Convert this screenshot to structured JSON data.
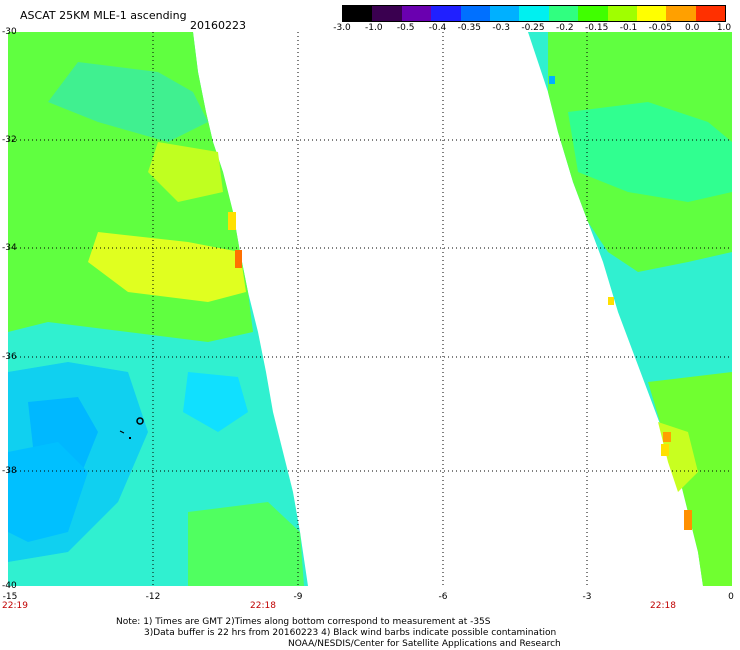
{
  "header": {
    "title": "ASCAT 25KM MLE-1 ascending",
    "date": "20160223"
  },
  "colorbar": {
    "colors": [
      "#000000",
      "#3a0050",
      "#6a00b0",
      "#2020ff",
      "#0070ff",
      "#00b0ff",
      "#00f0f0",
      "#30ff80",
      "#40ff00",
      "#a0ff00",
      "#ffff00",
      "#ffa000",
      "#ff3000"
    ],
    "labels": [
      "-3.0",
      "-1.0",
      "-0.5",
      "-0.4",
      "-0.35",
      "-0.3",
      "-0.25",
      "-0.2",
      "-0.15",
      "-0.1",
      "-0.05",
      "0.0",
      "1.0"
    ]
  },
  "map": {
    "lat_labels": [
      "-30",
      "-32",
      "-34",
      "-36",
      "-38",
      "-40"
    ],
    "lon_labels": [
      "-15",
      "-12",
      "-9",
      "-6",
      "-3",
      "0"
    ],
    "time_labels": [
      "22:19",
      "22:18",
      "22:18"
    ]
  },
  "notes": {
    "line1": "Note: 1) Times are GMT 2)Times along bottom correspond to measurement at -35S",
    "line2": "3)Data buffer is 22 hrs from 20160223 4) Black wind barbs indicate possible contamination",
    "line3": "NOAA/NESDIS/Center for Satellite Applications and Research"
  }
}
